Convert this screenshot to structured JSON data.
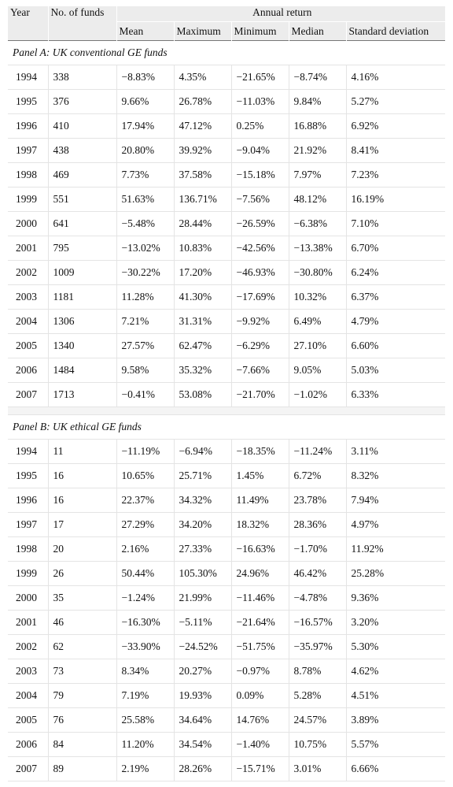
{
  "header": {
    "year": "Year",
    "num_funds": "No. of funds",
    "annual_return": "Annual return",
    "mean": "Mean",
    "maximum": "Maximum",
    "minimum": "Minimum",
    "median": "Median",
    "sd": "Standard deviation"
  },
  "panel_a": {
    "title": "Panel A: UK conventional GE funds",
    "rows": [
      [
        "1994",
        "338",
        "−8.83%",
        "4.35%",
        "−21.65%",
        "−8.74%",
        "4.16%"
      ],
      [
        "1995",
        "376",
        "9.66%",
        "26.78%",
        "−11.03%",
        "9.84%",
        "5.27%"
      ],
      [
        "1996",
        "410",
        "17.94%",
        "47.12%",
        "0.25%",
        "16.88%",
        "6.92%"
      ],
      [
        "1997",
        "438",
        "20.80%",
        "39.92%",
        "−9.04%",
        "21.92%",
        "8.41%"
      ],
      [
        "1998",
        "469",
        "7.73%",
        "37.58%",
        "−15.18%",
        "7.97%",
        "7.23%"
      ],
      [
        "1999",
        "551",
        "51.63%",
        "136.71%",
        "−7.56%",
        "48.12%",
        "16.19%"
      ],
      [
        "2000",
        "641",
        "−5.48%",
        "28.44%",
        "−26.59%",
        "−6.38%",
        "7.10%"
      ],
      [
        "2001",
        "795",
        "−13.02%",
        "10.83%",
        "−42.56%",
        "−13.38%",
        "6.70%"
      ],
      [
        "2002",
        "1009",
        "−30.22%",
        "17.20%",
        "−46.93%",
        "−30.80%",
        "6.24%"
      ],
      [
        "2003",
        "1181",
        "11.28%",
        "41.30%",
        "−17.69%",
        "10.32%",
        "6.37%"
      ],
      [
        "2004",
        "1306",
        "7.21%",
        "31.31%",
        "−9.92%",
        "6.49%",
        "4.79%"
      ],
      [
        "2005",
        "1340",
        "27.57%",
        "62.47%",
        "−6.29%",
        "27.10%",
        "6.60%"
      ],
      [
        "2006",
        "1484",
        "9.58%",
        "35.32%",
        "−7.66%",
        "9.05%",
        "5.03%"
      ],
      [
        "2007",
        "1713",
        "−0.41%",
        "53.08%",
        "−21.70%",
        "−1.02%",
        "6.33%"
      ]
    ]
  },
  "panel_b": {
    "title": "Panel B: UK ethical GE funds",
    "rows": [
      [
        "1994",
        "11",
        "−11.19%",
        "−6.94%",
        "−18.35%",
        "−11.24%",
        "3.11%"
      ],
      [
        "1995",
        "16",
        "10.65%",
        "25.71%",
        "1.45%",
        "6.72%",
        "8.32%"
      ],
      [
        "1996",
        "16",
        "22.37%",
        "34.32%",
        "11.49%",
        "23.78%",
        "7.94%"
      ],
      [
        "1997",
        "17",
        "27.29%",
        "34.20%",
        "18.32%",
        "28.36%",
        "4.97%"
      ],
      [
        "1998",
        "20",
        "2.16%",
        "27.33%",
        "−16.63%",
        "−1.70%",
        "11.92%"
      ],
      [
        "1999",
        "26",
        "50.44%",
        "105.30%",
        "24.96%",
        "46.42%",
        "25.28%"
      ],
      [
        "2000",
        "35",
        "−1.24%",
        "21.99%",
        "−11.46%",
        "−4.78%",
        "9.36%"
      ],
      [
        "2001",
        "46",
        "−16.30%",
        "−5.11%",
        "−21.64%",
        "−16.57%",
        "3.20%"
      ],
      [
        "2002",
        "62",
        "−33.90%",
        "−24.52%",
        "−51.75%",
        "−35.97%",
        "5.30%"
      ],
      [
        "2003",
        "73",
        "8.34%",
        "20.27%",
        "−0.97%",
        "8.78%",
        "4.62%"
      ],
      [
        "2004",
        "79",
        "7.19%",
        "19.93%",
        "0.09%",
        "5.28%",
        "4.51%"
      ],
      [
        "2005",
        "76",
        "25.58%",
        "34.64%",
        "14.76%",
        "24.57%",
        "3.89%"
      ],
      [
        "2006",
        "84",
        "11.20%",
        "34.54%",
        "−1.40%",
        "10.75%",
        "5.57%"
      ],
      [
        "2007",
        "89",
        "2.19%",
        "28.26%",
        "−15.71%",
        "3.01%",
        "6.66%"
      ]
    ]
  }
}
